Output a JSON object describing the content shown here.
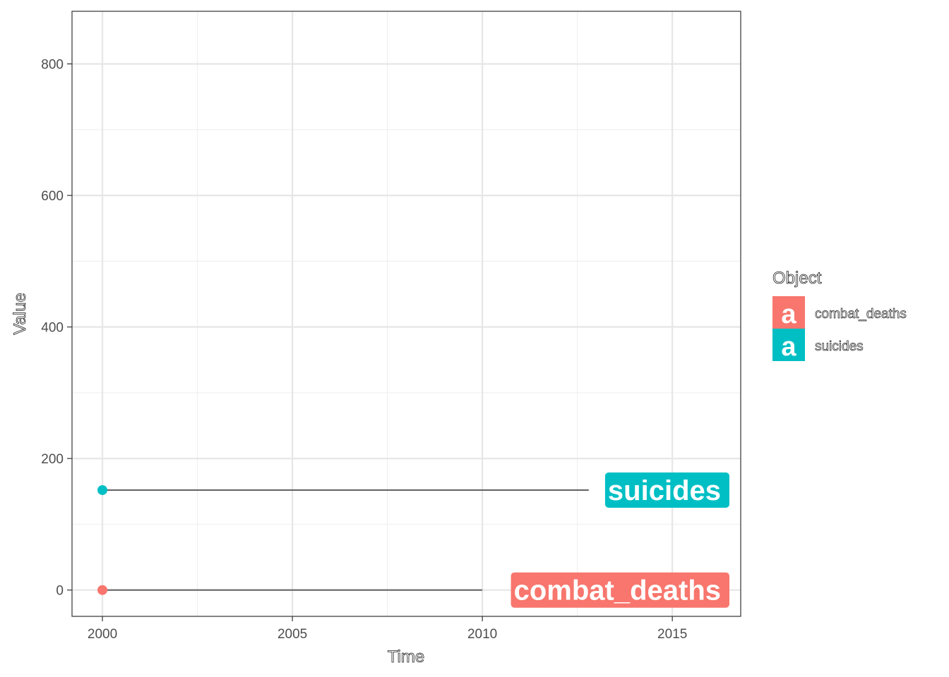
{
  "chart_data": {
    "type": "line",
    "title": "",
    "xlabel": "Time",
    "ylabel": "Value",
    "xlim": [
      1999.2,
      2016.8
    ],
    "ylim": [
      -40,
      880
    ],
    "x_ticks": [
      2000,
      2005,
      2010,
      2015
    ],
    "x_tick_labels": [
      "2000",
      "2005",
      "2010",
      "2015"
    ],
    "y_ticks": [
      0,
      200,
      400,
      600,
      800
    ],
    "y_tick_labels": [
      "0",
      "200",
      "400",
      "600",
      "800"
    ],
    "x_minor_ticks": [
      2002.5,
      2007.5,
      2012.5
    ],
    "y_minor_ticks": [
      100,
      300,
      500,
      700
    ],
    "grid": true,
    "legend": {
      "title": "Object",
      "placement": "right",
      "key_glyph": "a"
    },
    "series": [
      {
        "name": "combat_deaths",
        "color": "#F8766D",
        "point": {
          "x": 2000,
          "y": 0
        },
        "segment_end_x": 2010,
        "end_label": "combat_deaths"
      },
      {
        "name": "suicides",
        "color": "#00BFC4",
        "point": {
          "x": 2000,
          "y": 152
        },
        "segment_end_x": 2012.8,
        "end_label": "suicides"
      }
    ],
    "segment_color": "#666666"
  }
}
